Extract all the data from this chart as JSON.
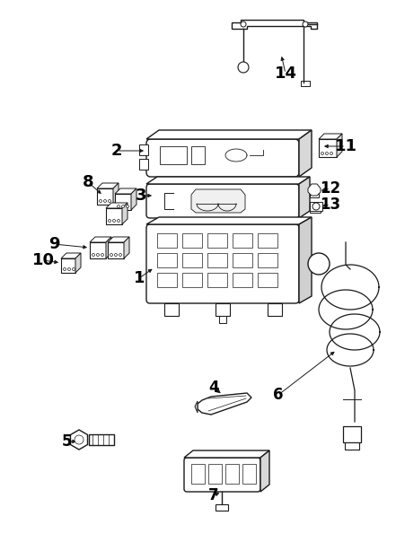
{
  "bg_color": "#ffffff",
  "line_color": "#1a1a1a",
  "label_color": "#000000",
  "fig_w": 4.41,
  "fig_h": 6.04,
  "dpi": 100
}
